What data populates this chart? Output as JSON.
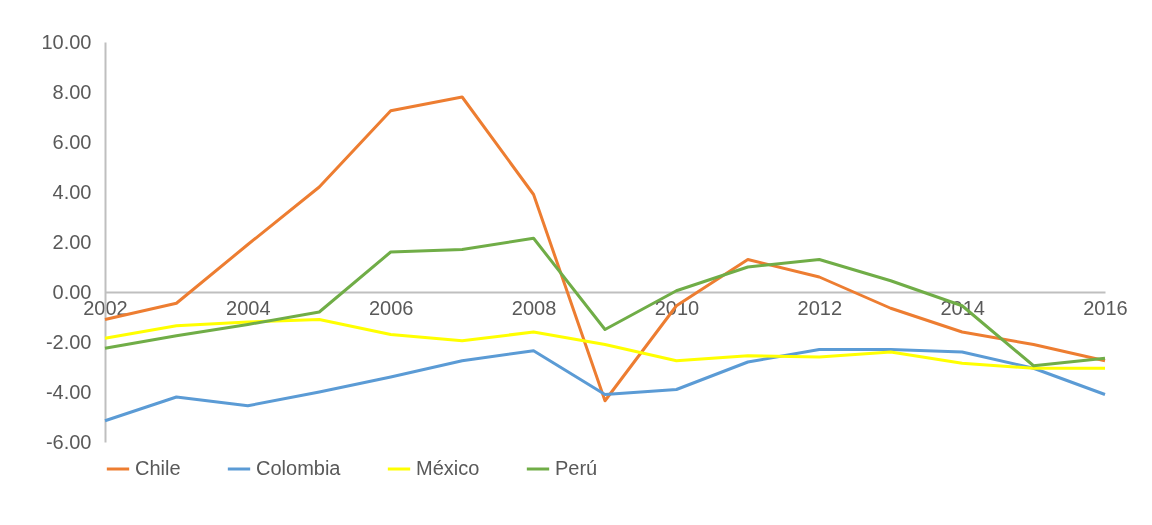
{
  "chart_data": {
    "type": "line",
    "x": [
      2002,
      2003,
      2004,
      2005,
      2006,
      2007,
      2008,
      2009,
      2010,
      2011,
      2012,
      2013,
      2014,
      2015,
      2016
    ],
    "series": [
      {
        "name": "Chile",
        "color": "#ed7d31",
        "values": [
          -1.1,
          -0.45,
          1.9,
          4.2,
          7.25,
          7.8,
          3.9,
          -4.35,
          -0.55,
          1.3,
          0.6,
          -0.65,
          -1.6,
          -2.1,
          -2.75
        ]
      },
      {
        "name": "Colombia",
        "color": "#5b9bd5",
        "values": [
          -5.15,
          -4.2,
          -4.55,
          -4.0,
          -3.4,
          -2.75,
          -2.35,
          -4.1,
          -3.9,
          -2.8,
          -2.3,
          -2.3,
          -2.4,
          -3.05,
          -4.1
        ]
      },
      {
        "name": "México",
        "color": "#ffff00",
        "values": [
          -1.85,
          -1.35,
          -1.2,
          -1.1,
          -1.7,
          -1.95,
          -1.6,
          -2.1,
          -2.75,
          -2.55,
          -2.6,
          -2.4,
          -2.85,
          -3.05,
          -3.05
        ]
      },
      {
        "name": "Perú",
        "color": "#70ad47",
        "values": [
          -2.25,
          -1.75,
          -1.3,
          -0.8,
          1.6,
          1.7,
          2.15,
          -1.5,
          0.05,
          1.0,
          1.3,
          0.45,
          -0.55,
          -2.95,
          -2.65
        ]
      }
    ],
    "xlim": [
      2002,
      2016
    ],
    "xticks": [
      2002,
      2004,
      2006,
      2008,
      2010,
      2012,
      2014,
      2016
    ],
    "ylim": [
      -6,
      10
    ],
    "yticks": [
      {
        "value": -6,
        "label": "-6.00"
      },
      {
        "value": -4,
        "label": "-4.00"
      },
      {
        "value": -2,
        "label": "-2.00"
      },
      {
        "value": 0,
        "label": "0.00"
      },
      {
        "value": 2,
        "label": "2.00"
      },
      {
        "value": 4,
        "label": "4.00"
      },
      {
        "value": 6,
        "label": "6.00"
      },
      {
        "value": 8,
        "label": "8.00"
      },
      {
        "value": 10,
        "label": "10.00"
      }
    ],
    "grid": false,
    "legend": "bottom",
    "marker": "none",
    "line_style": "solid"
  }
}
